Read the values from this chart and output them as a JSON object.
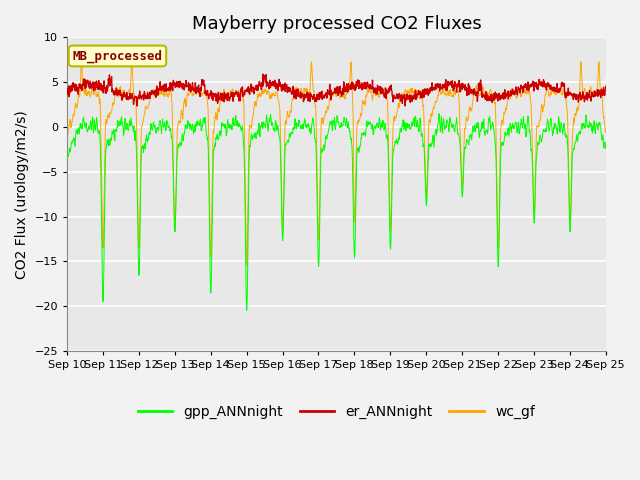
{
  "title": "Mayberry processed CO2 Fluxes",
  "ylabel": "CO2 Flux (urology/m2/s)",
  "ylim": [
    -25,
    10
  ],
  "yticks": [
    -25,
    -20,
    -15,
    -10,
    -5,
    0,
    5,
    10
  ],
  "n_points": 1500,
  "background_color": "#f2f2f2",
  "plot_bg_color": "#e8e8e8",
  "legend_labels": [
    "gpp_ANNnight",
    "er_ANNnight",
    "wc_gf"
  ],
  "legend_colors": [
    "#00ff00",
    "#cc0000",
    "#ffa500"
  ],
  "line_colors": {
    "gpp": "#00ff00",
    "er": "#cc0000",
    "wc": "#ffa500"
  },
  "inset_label": "MB_processed",
  "inset_text_color": "#8b0000",
  "inset_bg_color": "#ffffcc",
  "inset_border_color": "#b8b800",
  "x_tick_labels": [
    "Sep 10",
    "Sep 11",
    "Sep 12",
    "Sep 13",
    "Sep 14",
    "Sep 15",
    "Sep 16",
    "Sep 17",
    "Sep 18",
    "Sep 19",
    "Sep 20",
    "Sep 21",
    "Sep 22",
    "Sep 23",
    "Sep 24",
    "Sep 25"
  ],
  "grid_color": "#ffffff",
  "title_fontsize": 13,
  "axis_fontsize": 10,
  "tick_fontsize": 8,
  "legend_fontsize": 10
}
